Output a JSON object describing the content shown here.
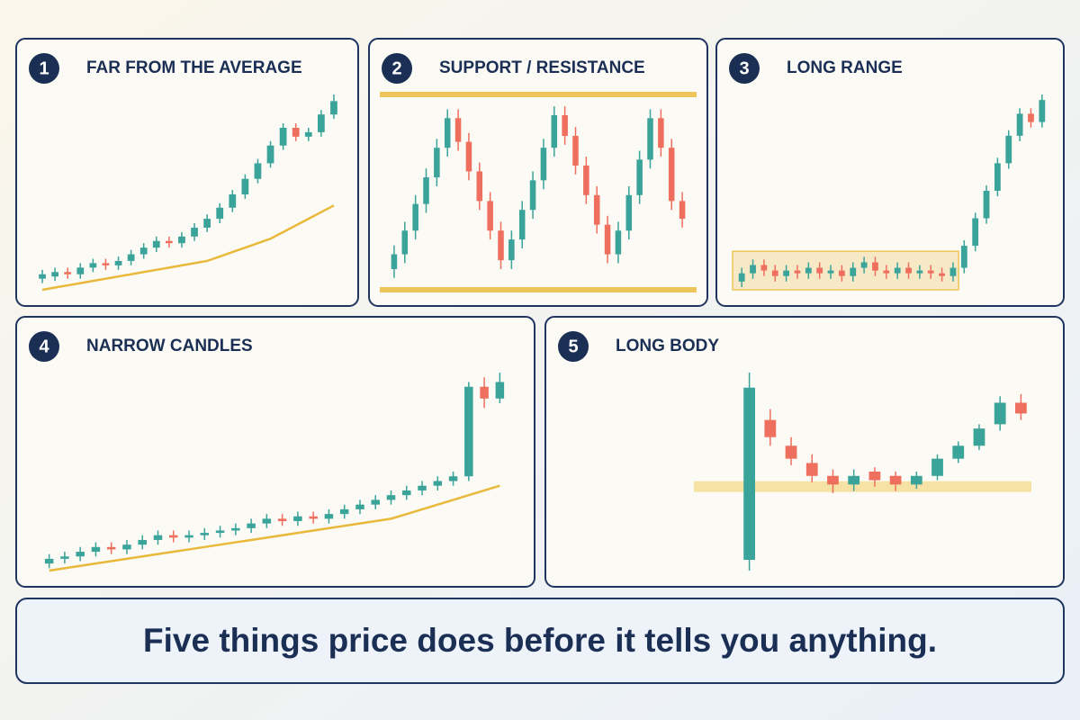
{
  "chart_data": [
    {
      "type": "candlestick",
      "badge": "1",
      "title": "FAR FROM THE AVERAGE",
      "up_color": "#3aa39a",
      "down_color": "#ef6f5e",
      "average_color": "#e8b93a",
      "open": [
        10,
        11,
        13,
        12,
        15,
        17,
        16,
        18,
        21,
        24,
        27,
        26,
        29,
        33,
        37,
        42,
        48,
        55,
        62,
        70,
        78,
        74,
        76,
        84
      ],
      "close": [
        12,
        13,
        12,
        15,
        17,
        16,
        18,
        21,
        24,
        27,
        26,
        29,
        33,
        37,
        42,
        48,
        55,
        62,
        70,
        78,
        74,
        76,
        84,
        90
      ],
      "high": [
        14,
        15,
        15,
        17,
        19,
        19,
        20,
        23,
        26,
        29,
        29,
        31,
        35,
        39,
        44,
        50,
        57,
        64,
        72,
        80,
        80,
        78,
        86,
        93
      ],
      "low": [
        8,
        9,
        10,
        10,
        13,
        14,
        14,
        16,
        19,
        22,
        24,
        24,
        27,
        31,
        35,
        40,
        46,
        53,
        60,
        68,
        72,
        72,
        74,
        82
      ],
      "average": [
        5,
        6,
        7,
        8,
        9,
        10,
        11,
        12,
        13,
        14,
        15,
        16,
        17,
        18,
        20,
        22,
        24,
        26,
        28,
        31,
        34,
        37,
        40,
        43
      ]
    },
    {
      "type": "candlestick",
      "badge": "2",
      "title": "SUPPORT / RESISTANCE",
      "up_color": "#3aa39a",
      "down_color": "#ef6f5e",
      "level_color": "#eec55a",
      "open": [
        25,
        30,
        38,
        47,
        56,
        66,
        76,
        68,
        58,
        48,
        38,
        28,
        35,
        45,
        55,
        66,
        77,
        70,
        60,
        50,
        40,
        30,
        38,
        50,
        62,
        76,
        66,
        48
      ],
      "close": [
        30,
        38,
        47,
        56,
        66,
        76,
        68,
        58,
        48,
        38,
        28,
        35,
        45,
        55,
        66,
        77,
        70,
        60,
        50,
        40,
        30,
        38,
        50,
        62,
        76,
        66,
        48,
        42
      ],
      "high": [
        33,
        41,
        50,
        59,
        69,
        79,
        79,
        71,
        61,
        51,
        41,
        38,
        48,
        58,
        69,
        80,
        80,
        73,
        63,
        53,
        43,
        41,
        53,
        65,
        79,
        79,
        69,
        51
      ],
      "low": [
        22,
        27,
        35,
        44,
        53,
        63,
        65,
        55,
        45,
        35,
        25,
        25,
        32,
        42,
        52,
        63,
        67,
        57,
        47,
        37,
        27,
        27,
        35,
        47,
        59,
        63,
        45,
        39
      ],
      "levels": [
        84,
        18
      ]
    },
    {
      "type": "candlestick",
      "badge": "3",
      "title": "LONG RANGE",
      "up_color": "#3aa39a",
      "down_color": "#ef6f5e",
      "range_color": "#eec55a",
      "open": [
        27,
        30,
        33,
        31,
        29,
        31,
        30,
        32,
        30,
        31,
        29,
        32,
        34,
        31,
        30,
        32,
        30,
        31,
        30,
        29,
        32,
        40,
        50,
        60,
        70,
        80,
        88,
        85
      ],
      "close": [
        30,
        33,
        31,
        29,
        31,
        30,
        32,
        30,
        31,
        29,
        32,
        34,
        31,
        30,
        32,
        30,
        31,
        30,
        29,
        32,
        40,
        50,
        60,
        70,
        80,
        88,
        85,
        93
      ],
      "high": [
        32,
        35,
        35,
        33,
        33,
        33,
        34,
        34,
        33,
        33,
        34,
        36,
        36,
        33,
        34,
        34,
        33,
        33,
        32,
        34,
        42,
        52,
        62,
        72,
        82,
        90,
        90,
        95
      ],
      "low": [
        25,
        28,
        29,
        27,
        27,
        28,
        28,
        28,
        28,
        27,
        27,
        30,
        29,
        28,
        28,
        28,
        28,
        28,
        27,
        27,
        30,
        38,
        48,
        58,
        68,
        78,
        83,
        83
      ],
      "range": {
        "low": 24,
        "high": 38,
        "candles": 20
      }
    },
    {
      "type": "candlestick",
      "badge": "4",
      "title": "NARROW CANDLES",
      "up_color": "#3aa39a",
      "down_color": "#ef6f5e",
      "average_color": "#e8b93a",
      "open": [
        5,
        7,
        8,
        10,
        12,
        11,
        13,
        15,
        17,
        16,
        17,
        18,
        19,
        20,
        22,
        24,
        23,
        25,
        24,
        26,
        28,
        30,
        32,
        34,
        36,
        38,
        40,
        42,
        80,
        75
      ],
      "close": [
        7,
        8,
        10,
        12,
        11,
        13,
        15,
        17,
        16,
        17,
        18,
        19,
        20,
        22,
        24,
        23,
        25,
        24,
        26,
        28,
        30,
        32,
        34,
        36,
        38,
        40,
        42,
        80,
        75,
        82
      ],
      "high": [
        9,
        10,
        12,
        14,
        14,
        15,
        17,
        19,
        19,
        19,
        20,
        21,
        22,
        24,
        26,
        26,
        27,
        27,
        28,
        30,
        32,
        34,
        36,
        38,
        40,
        42,
        44,
        82,
        84,
        86
      ],
      "low": [
        3,
        5,
        6,
        8,
        9,
        9,
        11,
        13,
        14,
        14,
        15,
        16,
        17,
        18,
        20,
        21,
        21,
        22,
        22,
        24,
        26,
        28,
        30,
        32,
        34,
        36,
        38,
        40,
        71,
        73
      ],
      "average": [
        2,
        3,
        4,
        5,
        6,
        7,
        8,
        9,
        10,
        11,
        12,
        13,
        14,
        15,
        16,
        17,
        18,
        19,
        20,
        21,
        22,
        23,
        24,
        26,
        28,
        30,
        32,
        34,
        36,
        38
      ]
    },
    {
      "type": "candlestick",
      "badge": "5",
      "title": "LONG BODY",
      "up_color": "#3aa39a",
      "down_color": "#ef6f5e",
      "band_color": "#f6d98a",
      "open": [
        5,
        70,
        58,
        50,
        44,
        40,
        46,
        44,
        40,
        44,
        52,
        58,
        68,
        78
      ],
      "close": [
        85,
        62,
        52,
        44,
        40,
        44,
        42,
        40,
        44,
        52,
        58,
        66,
        78,
        73
      ],
      "high": [
        92,
        75,
        62,
        54,
        47,
        47,
        48,
        46,
        46,
        54,
        60,
        68,
        81,
        82
      ],
      "low": [
        0,
        58,
        49,
        41,
        36,
        37,
        39,
        37,
        38,
        42,
        50,
        56,
        65,
        70
      ],
      "band": 39
    }
  ],
  "footer": "Five things price does before it tells you anything."
}
